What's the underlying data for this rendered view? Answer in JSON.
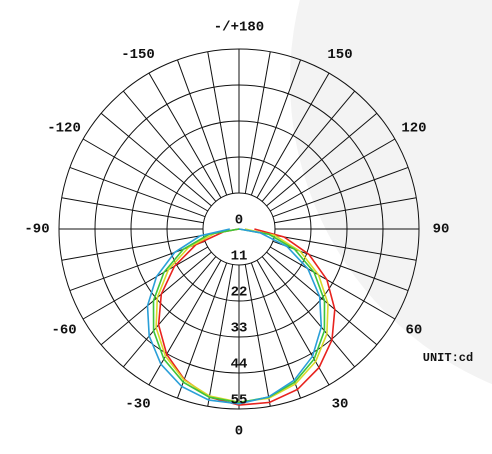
{
  "chart_data": {
    "type": "polar",
    "unit_label": "UNIT:cd",
    "angles": [
      -90,
      -80,
      -70,
      -60,
      -50,
      -40,
      -30,
      -20,
      -10,
      0,
      10,
      20,
      30,
      40,
      50,
      60,
      70,
      80,
      90
    ],
    "rlim": [
      0,
      55
    ],
    "rticks": [
      0,
      11,
      22,
      33,
      44,
      55
    ],
    "angle_ticks": [
      0,
      30,
      60,
      90,
      120,
      150,
      {
        "value": 180,
        "label": "-/+180"
      },
      -150,
      -120,
      -90,
      -60,
      -30
    ],
    "grid": true,
    "series": [
      {
        "color": "#e8231e",
        "values": [
          0,
          4.7,
          14,
          22.8,
          31,
          38.2,
          44.2,
          48.9,
          52.2,
          53.8,
          53.8,
          52.2,
          48.9,
          44.2,
          38.2,
          31,
          22.8,
          14,
          4.7
        ]
      },
      {
        "color": "#d9d92a",
        "values": [
          0,
          7.4,
          16.4,
          24.9,
          32.6,
          39.4,
          44.9,
          49.1,
          51.8,
          52.9,
          52.5,
          50.4,
          46.8,
          41.8,
          35.5,
          28.1,
          19.9,
          11,
          1.8
        ]
      },
      {
        "color": "#3cc43c",
        "values": [
          0,
          9.2,
          18.1,
          26.5,
          34.1,
          40.6,
          45.9,
          49.8,
          52.2,
          53,
          52.2,
          49.8,
          45.9,
          40.6,
          34.1,
          26.5,
          18.1,
          9.2,
          0
        ]
      },
      {
        "color": "#2a9fd8",
        "values": [
          2.8,
          12,
          20.9,
          29.1,
          36.5,
          42.7,
          47.7,
          51.2,
          53.1,
          53.4,
          52.1,
          49.2,
          44.9,
          39.1,
          32.2,
          24.3,
          15.6,
          6.5,
          0
        ]
      }
    ]
  }
}
